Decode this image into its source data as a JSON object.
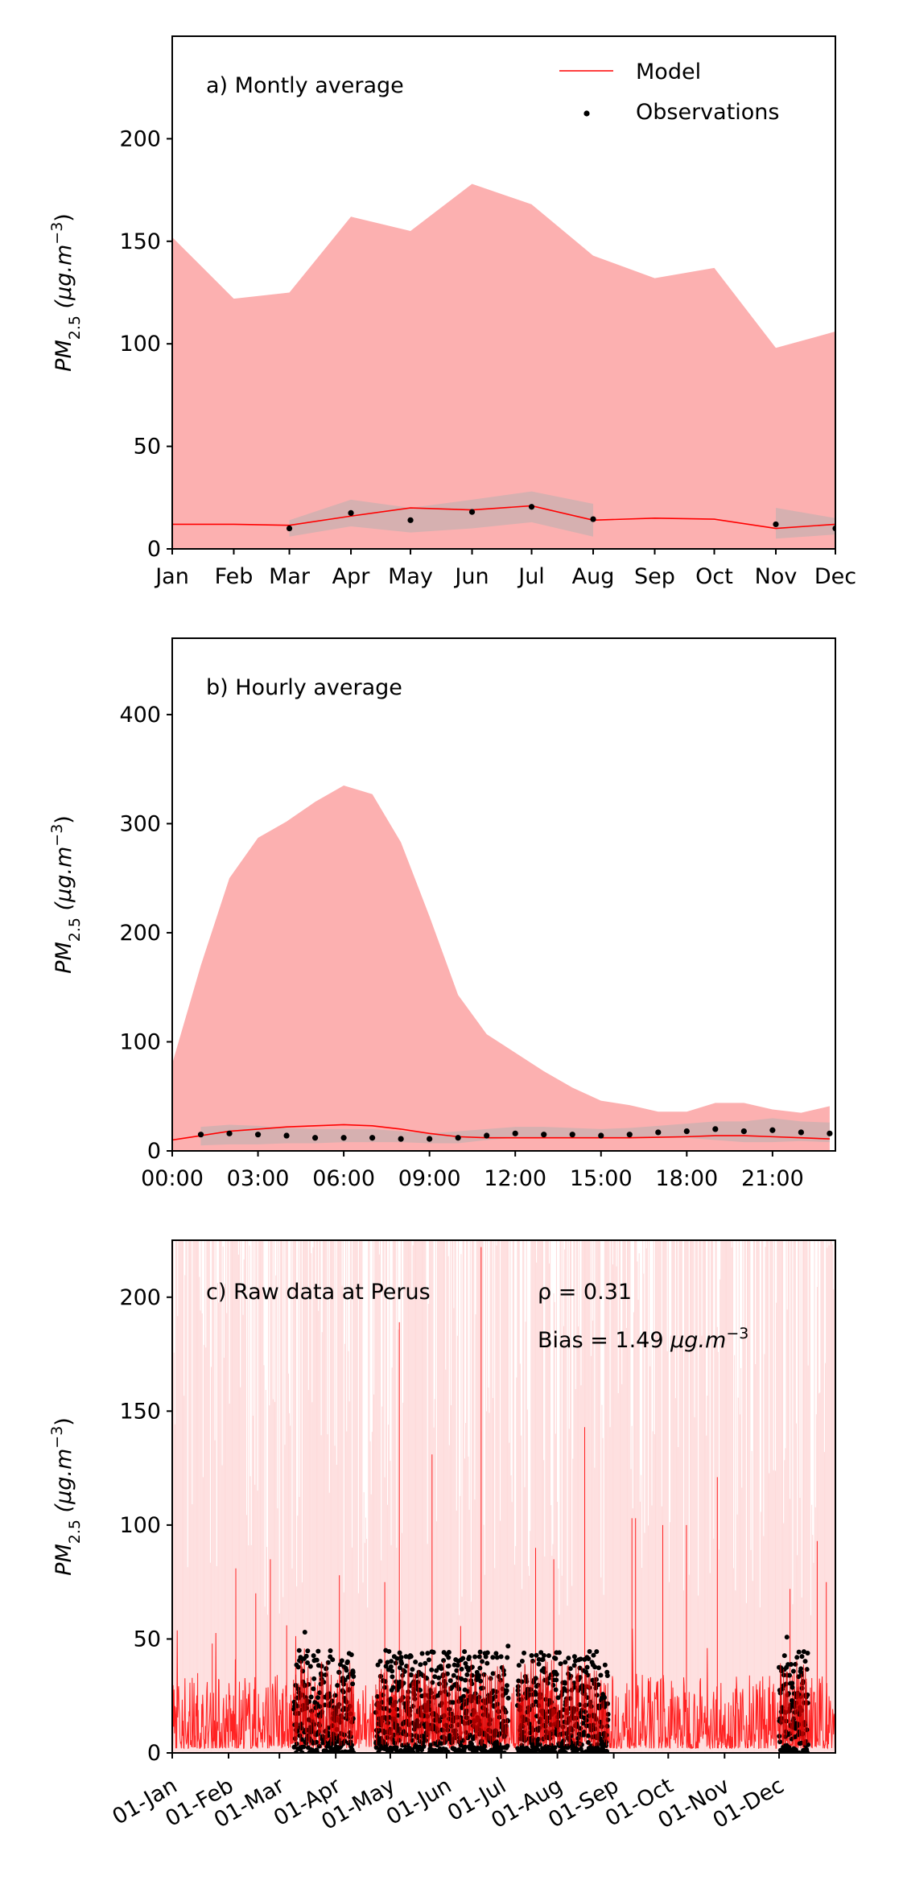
{
  "ylabel": {
    "main": "PM",
    "sub": "2.5",
    "unit": " (μg.m",
    "sup": "−3",
    "close": ")"
  },
  "colors": {
    "model": "#ff0000",
    "model_band": "#fcb0b0",
    "obs": "#000000",
    "obs_band": "#b0b0b0"
  },
  "chart_data": [
    {
      "type": "line",
      "title": "a) Montly average",
      "legend": {
        "placement": "top-right",
        "model": "Model",
        "obs": "Observations"
      },
      "categories": [
        "Jan",
        "Feb",
        "Mar",
        "Apr",
        "May",
        "Jun",
        "Jul",
        "Aug",
        "Sep",
        "Oct",
        "Nov",
        "Dec"
      ],
      "x_days": [
        0,
        31,
        59,
        90,
        120,
        151,
        181,
        212,
        243,
        273,
        304,
        334
      ],
      "xlim": [
        0,
        334
      ],
      "ylim": [
        0,
        250
      ],
      "yticks": [
        0,
        50,
        100,
        150,
        200
      ],
      "model": [
        12,
        12,
        11.5,
        16,
        20,
        19,
        21,
        14,
        15,
        14.5,
        10,
        12
      ],
      "model_band_upper": [
        152,
        122,
        125,
        162,
        155,
        178,
        168,
        143,
        132,
        137,
        98,
        106
      ],
      "obs": [
        null,
        null,
        10,
        17.5,
        14,
        18,
        20.5,
        14.5,
        null,
        null,
        12,
        10
      ],
      "obs_band_low": [
        null,
        null,
        6,
        11,
        8,
        10,
        13,
        6,
        null,
        null,
        5,
        7
      ],
      "obs_band_high": [
        null,
        null,
        14,
        24,
        20,
        24,
        28,
        22,
        null,
        null,
        20,
        15
      ]
    },
    {
      "type": "line",
      "title": "b) Hourly average",
      "xtick_labels": [
        "00:00",
        "03:00",
        "06:00",
        "09:00",
        "12:00",
        "15:00",
        "18:00",
        "21:00"
      ],
      "xticks": [
        0,
        3,
        6,
        9,
        12,
        15,
        18,
        21
      ],
      "xlim": [
        0,
        23.2
      ],
      "ylim": [
        0,
        470
      ],
      "yticks": [
        0,
        100,
        200,
        300,
        400
      ],
      "hours": [
        0,
        1,
        2,
        3,
        4,
        5,
        6,
        7,
        8,
        9,
        10,
        11,
        12,
        13,
        14,
        15,
        16,
        17,
        18,
        19,
        20,
        21,
        22,
        23
      ],
      "model": [
        10,
        14,
        18,
        20,
        22,
        23,
        24,
        23,
        20,
        16,
        13,
        12,
        12,
        12,
        12,
        12,
        12,
        12.5,
        13,
        14,
        14,
        13,
        12,
        11
      ],
      "model_band_upper": [
        80,
        170,
        250,
        287,
        302,
        320,
        335,
        327,
        283,
        215,
        143,
        107,
        90,
        73,
        58,
        46,
        42,
        36,
        36,
        44,
        44,
        38,
        35,
        41
      ],
      "obs": [
        null,
        15,
        16,
        15,
        14,
        12,
        12,
        12,
        11,
        11,
        12,
        14,
        16,
        15,
        15,
        14,
        15,
        17,
        18,
        20,
        18,
        19,
        17,
        16
      ],
      "obs_band_low": [
        null,
        5,
        6,
        6,
        7,
        7,
        8,
        8,
        8,
        7,
        7,
        10,
        12,
        12,
        12,
        12,
        12,
        12,
        12,
        10,
        8,
        8,
        9,
        8
      ],
      "obs_band_high": [
        null,
        22,
        24,
        23,
        21,
        20,
        20,
        20,
        18,
        16,
        18,
        20,
        22,
        22,
        21,
        20,
        21,
        23,
        25,
        27,
        27,
        30,
        27,
        26
      ]
    },
    {
      "type": "line",
      "title": "c) Raw data at Perus",
      "rho_label": "ρ = 0.31",
      "bias_label": "Bias = 1.49 ",
      "bias_unit": "μg.m",
      "bias_sup": "−3",
      "xtick_labels": [
        "01-Jan",
        "01-Feb",
        "01-Mar",
        "01-Apr",
        "01-May",
        "01-Jun",
        "01-Jul",
        "01-Aug",
        "01-Sep",
        "01-Oct",
        "01-Nov",
        "01-Dec"
      ],
      "xticks": [
        0,
        31,
        59,
        90,
        120,
        151,
        181,
        212,
        243,
        273,
        304,
        334
      ],
      "xlim": [
        0,
        365
      ],
      "ylim": [
        0,
        225
      ],
      "yticks": [
        0,
        50,
        100,
        150,
        200
      ],
      "model_typical_range": [
        2,
        35
      ],
      "model_spikes": [
        [
          14,
          35
        ],
        [
          22,
          48
        ],
        [
          35,
          81
        ],
        [
          46,
          70
        ],
        [
          54,
          85
        ],
        [
          63,
          56
        ],
        [
          92,
          78
        ],
        [
          117,
          75
        ],
        [
          125,
          189
        ],
        [
          143,
          131
        ],
        [
          170,
          222
        ],
        [
          200,
          90
        ],
        [
          210,
          85
        ],
        [
          227,
          143
        ],
        [
          253,
          103
        ],
        [
          255,
          103
        ],
        [
          270,
          100
        ],
        [
          283,
          100
        ],
        [
          300,
          121
        ],
        [
          340,
          72
        ],
        [
          355,
          93
        ],
        [
          360,
          75
        ]
      ],
      "obs_periods": [
        [
          67,
          100
        ],
        [
          112,
          185
        ],
        [
          190,
          240
        ],
        [
          334,
          350
        ]
      ],
      "obs_typical_range": [
        0,
        45
      ],
      "obs_max": 60
    }
  ]
}
